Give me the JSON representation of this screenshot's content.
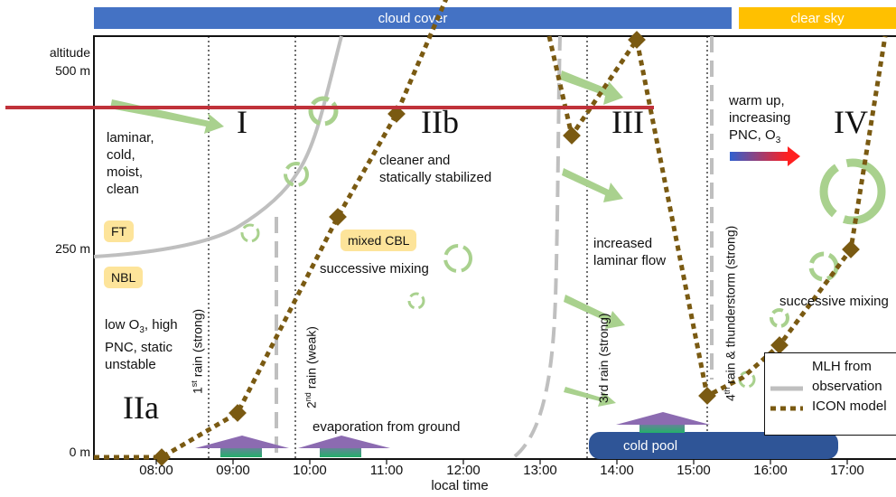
{
  "top_bars": {
    "cloud_cover": {
      "label": "cloud cover",
      "color": "#4472c4"
    },
    "clear_sky": {
      "label": "clear sky",
      "color": "#ffc000"
    }
  },
  "y_axis": {
    "title": "altitude",
    "ticks": [
      "500 m",
      "250 m",
      "0 m"
    ]
  },
  "x_axis": {
    "title": "local time",
    "ticks": [
      "08:00",
      "09:00",
      "10:00",
      "11:00",
      "12:00",
      "13:00",
      "14:00",
      "15:00",
      "16:00",
      "17:00"
    ]
  },
  "phases": [
    "I",
    "IIa",
    "IIb",
    "III",
    "IV"
  ],
  "rain_events": {
    "first": {
      "sup": "st",
      "text": " rain (strong)",
      "num": "1"
    },
    "second": {
      "sup": "nd",
      "text": " rain (weak)",
      "num": "2"
    },
    "third": "3rd rain (strong)",
    "fourth": {
      "num": "4",
      "sup": "th",
      "text": " rain & thunderstorm (strong)"
    }
  },
  "annotations": {
    "laminar": [
      "laminar,",
      "cold,",
      "moist,",
      "clean"
    ],
    "ft": "FT",
    "nbl": "NBL",
    "low_o3": [
      "low O",
      "3",
      ", high",
      "PNC, static",
      "unstable"
    ],
    "cleaner": [
      "cleaner and",
      "statically stabilized"
    ],
    "mixed_cbl": "mixed CBL",
    "successive_mixing_1": "successive mixing",
    "increased_laminar": [
      "increased",
      "laminar flow"
    ],
    "warm_up": [
      "warm up,",
      "increasing",
      "PNC, O",
      "3"
    ],
    "successive_mixing_2": "successive mixing",
    "evaporation": "evaporation from ground",
    "cold_pool": "cold pool"
  },
  "legend": {
    "title": "MLH from",
    "obs": "observation",
    "icon": "ICON model"
  },
  "colors": {
    "red_line": "#c0323a",
    "icon_model": "#7a5a12",
    "observation": "#bfbfbf",
    "green_arrow": "#a9d18e",
    "cold_pool": "#2f5597"
  }
}
